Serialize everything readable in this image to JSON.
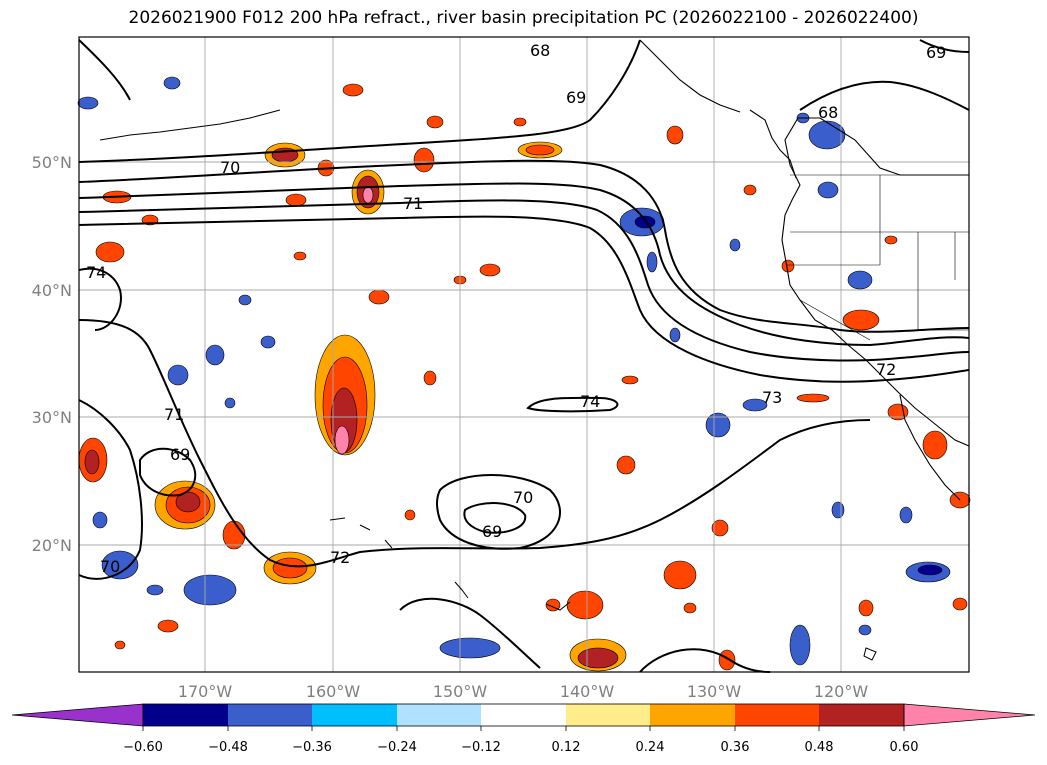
{
  "title": "2026021900 F012 200 hPa refract., river basin precipitation PC (2026022100 - 2026022400)",
  "map": {
    "lat_labels": [
      "50°N",
      "40°N",
      "30°N",
      "20°N"
    ],
    "lon_labels": [
      "170°W",
      "160°W",
      "150°W",
      "140°W",
      "130°W",
      "120°W"
    ],
    "contour_labels": [
      "68",
      "69",
      "70",
      "71",
      "74",
      "70",
      "69",
      "72",
      "73",
      "72",
      "71",
      "69",
      "70",
      "74",
      "68",
      "69"
    ]
  },
  "colorbar": {
    "ticks": [
      "−0.60",
      "−0.48",
      "−0.36",
      "−0.24",
      "−0.12",
      "0.12",
      "0.24",
      "0.36",
      "0.48",
      "0.60"
    ],
    "colors": [
      "#9932CC",
      "#00008B",
      "#3A5FCD",
      "#00BFFF",
      "#B0E2FF",
      "#FFFFFF",
      "#FFEC8B",
      "#FFA500",
      "#FF4500",
      "#B22222",
      "#FF82AB"
    ]
  },
  "colors": {
    "blue_dark": "#00008B",
    "blue_mid": "#3A5FCD",
    "blue_cyan": "#00BFFF",
    "blue_light": "#B0E2FF",
    "yellow": "#FFEC8B",
    "orange": "#FFA500",
    "red_orange": "#FF4500",
    "dark_red": "#B22222",
    "pink": "#FF82AB"
  }
}
